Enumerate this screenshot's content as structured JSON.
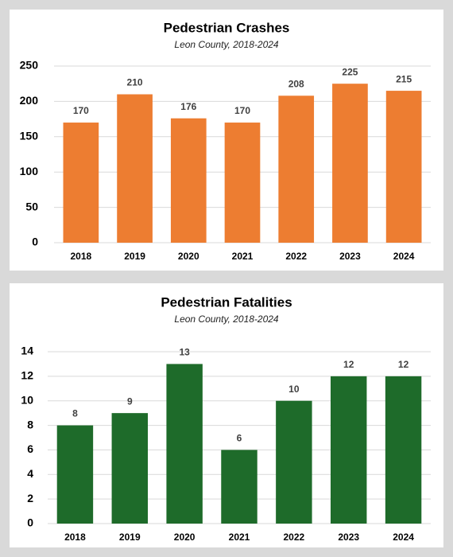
{
  "chart_data": [
    {
      "type": "bar",
      "title": "Pedestrian Crashes",
      "subtitle": "Leon County, 2018-2024",
      "categories": [
        "2018",
        "2019",
        "2020",
        "2021",
        "2022",
        "2023",
        "2024"
      ],
      "values": [
        170,
        210,
        176,
        170,
        208,
        225,
        215
      ],
      "color": "#ed7d31",
      "ylim": [
        0,
        250
      ],
      "yticks": [
        0,
        50,
        100,
        150,
        200,
        250
      ],
      "grid": true
    },
    {
      "type": "bar",
      "title": "Pedestrian Fatalities",
      "subtitle": "Leon County, 2018-2024",
      "categories": [
        "2018",
        "2019",
        "2020",
        "2021",
        "2022",
        "2023",
        "2024"
      ],
      "values": [
        8,
        9,
        13,
        6,
        10,
        12,
        12
      ],
      "color": "#1e6b2a",
      "ylim": [
        0,
        14
      ],
      "yticks": [
        0,
        2,
        4,
        6,
        8,
        10,
        12,
        14
      ],
      "grid": true
    }
  ]
}
